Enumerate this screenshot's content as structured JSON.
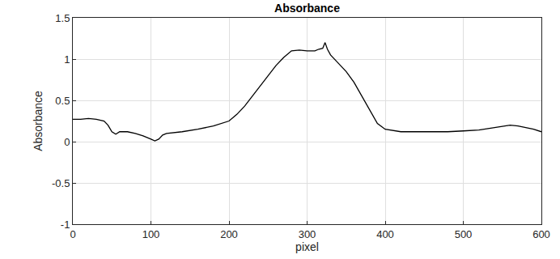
{
  "chart_data": {
    "type": "line",
    "title": "Absorbance",
    "x_label": "pixel",
    "y_label": "Absorbance",
    "x": [
      0,
      10,
      20,
      30,
      40,
      45,
      50,
      55,
      60,
      70,
      80,
      90,
      100,
      105,
      110,
      115,
      120,
      140,
      160,
      180,
      200,
      210,
      220,
      230,
      240,
      250,
      260,
      270,
      280,
      290,
      300,
      310,
      315,
      320,
      323,
      326,
      330,
      340,
      350,
      360,
      370,
      380,
      390,
      400,
      420,
      440,
      460,
      480,
      500,
      520,
      540,
      560,
      570,
      580,
      590,
      600
    ],
    "values": [
      0.27,
      0.27,
      0.28,
      0.27,
      0.25,
      0.2,
      0.12,
      0.09,
      0.12,
      0.12,
      0.1,
      0.07,
      0.03,
      0.01,
      0.03,
      0.08,
      0.1,
      0.12,
      0.15,
      0.19,
      0.25,
      0.33,
      0.43,
      0.55,
      0.68,
      0.8,
      0.92,
      1.02,
      1.1,
      1.11,
      1.1,
      1.1,
      1.12,
      1.13,
      1.2,
      1.12,
      1.05,
      0.95,
      0.85,
      0.72,
      0.55,
      0.38,
      0.22,
      0.15,
      0.12,
      0.12,
      0.12,
      0.12,
      0.13,
      0.14,
      0.17,
      0.2,
      0.19,
      0.17,
      0.15,
      0.12
    ],
    "color": "#000000",
    "xlim": [
      0,
      600
    ],
    "xticks": [
      0,
      100,
      200,
      300,
      400,
      500,
      600
    ],
    "ylim": [
      -1,
      1.5
    ],
    "yticks": [
      -1,
      -0.5,
      0,
      0.5,
      1,
      1.5
    ],
    "grid": true
  }
}
